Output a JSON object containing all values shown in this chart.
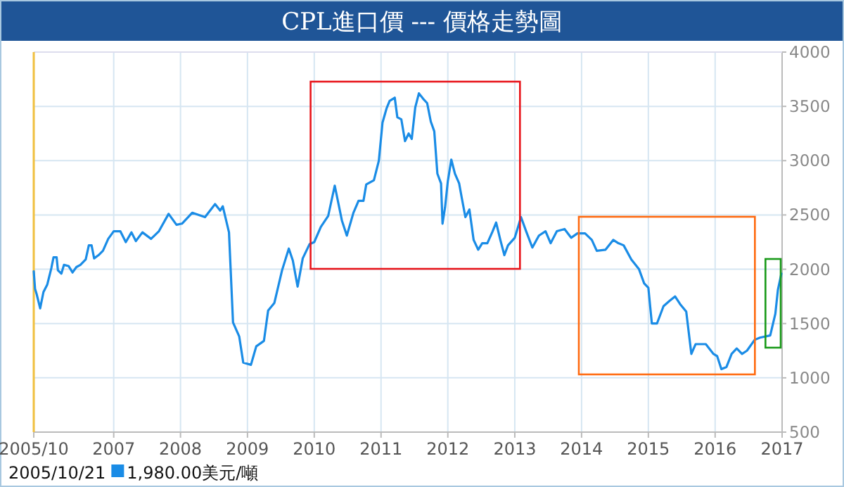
{
  "chart_data": {
    "type": "line",
    "title": "CPL進口價 --- 價格走勢圖",
    "xlim": [
      "2005-10-21",
      "2017-01-01"
    ],
    "xticks": [
      {
        "value": "2005-10-21",
        "label": "2005/10"
      },
      {
        "value": "2007",
        "label": "2007"
      },
      {
        "value": "2008",
        "label": "2008"
      },
      {
        "value": "2009",
        "label": "2009"
      },
      {
        "value": "2010",
        "label": "2010"
      },
      {
        "value": "2011",
        "label": "2011"
      },
      {
        "value": "2012",
        "label": "2012"
      },
      {
        "value": "2013",
        "label": "2013"
      },
      {
        "value": "2014",
        "label": "2014"
      },
      {
        "value": "2015",
        "label": "2015"
      },
      {
        "value": "2016",
        "label": "2016"
      },
      {
        "value": "2017",
        "label": "2017"
      }
    ],
    "ylim": [
      500,
      4000
    ],
    "yticks": [
      500,
      1000,
      1500,
      2000,
      2500,
      3000,
      3500,
      4000
    ],
    "grid": true,
    "series": [
      {
        "color": "#1a8ce6",
        "x": [
          "2005-10-21",
          "2005-10-28",
          "2005-11-06",
          "2005-11-25",
          "2005-12-13",
          "2006-01-03",
          "2006-01-25",
          "2006-02-06",
          "2006-02-23",
          "2006-03-02",
          "2006-03-21",
          "2006-04-04",
          "2006-04-29",
          "2006-05-21",
          "2006-06-11",
          "2006-07-03",
          "2006-08-01",
          "2006-08-18",
          "2006-09-02",
          "2006-09-16",
          "2006-10-10",
          "2006-11-03",
          "2006-12-02",
          "2007-01-01",
          "2007-02-06",
          "2007-03-08",
          "2007-04-08",
          "2007-05-02",
          "2007-06-07",
          "2007-07-24",
          "2007-09-05",
          "2007-10-28",
          "2007-12-10",
          "2008-01-09",
          "2008-03-05",
          "2008-05-14",
          "2008-07-08",
          "2008-08-05",
          "2008-08-19",
          "2008-09-22",
          "2008-10-14",
          "2008-11-17",
          "2008-12-09",
          "2009-01-20",
          "2009-02-18",
          "2009-04-01",
          "2009-04-24",
          "2009-05-28",
          "2009-07-09",
          "2009-08-15",
          "2009-09-06",
          "2009-10-02",
          "2009-10-30",
          "2009-12-06",
          "2010-01-01",
          "2010-02-06",
          "2010-03-18",
          "2010-04-23",
          "2010-06-01",
          "2010-06-28",
          "2010-08-03",
          "2010-08-31",
          "2010-09-27",
          "2010-10-12",
          "2010-11-23",
          "2010-12-20",
          "2011-01-09",
          "2011-01-31",
          "2011-02-17",
          "2011-03-17",
          "2011-03-31",
          "2011-04-22",
          "2011-05-12",
          "2011-06-01",
          "2011-06-18",
          "2011-07-07",
          "2011-07-27",
          "2011-08-19",
          "2011-09-10",
          "2011-09-30",
          "2011-10-19",
          "2011-11-05",
          "2011-11-25",
          "2011-12-03",
          "2011-12-17",
          "2012-01-01",
          "2012-01-20",
          "2012-02-09",
          "2012-03-03",
          "2012-03-17",
          "2012-04-06",
          "2012-04-28",
          "2012-05-21",
          "2012-06-15",
          "2012-07-07",
          "2012-08-04",
          "2012-09-02",
          "2012-09-21",
          "2012-10-14",
          "2012-11-05",
          "2012-11-25",
          "2013-01-01",
          "2013-02-04",
          "2013-03-04",
          "2013-04-07",
          "2013-05-13",
          "2013-06-18",
          "2013-07-16",
          "2013-08-19",
          "2013-09-30",
          "2013-11-05",
          "2013-12-09",
          "2014-01-20",
          "2014-02-26",
          "2014-03-25",
          "2014-05-12",
          "2014-06-23",
          "2014-07-21",
          "2014-08-19",
          "2014-09-30",
          "2014-11-11",
          "2014-12-09",
          "2015-01-01",
          "2015-01-20",
          "2015-02-17",
          "2015-03-25",
          "2015-04-28",
          "2015-05-27",
          "2015-06-23",
          "2015-07-27",
          "2015-08-24",
          "2015-09-16",
          "2015-11-11",
          "2015-12-23",
          "2016-01-12",
          "2016-02-04",
          "2016-03-03",
          "2016-03-31",
          "2016-04-28",
          "2016-05-27",
          "2016-06-23",
          "2016-08-04",
          "2016-09-02",
          "2016-10-28",
          "2016-11-25",
          "2016-12-09",
          "2016-12-28"
        ],
        "values": [
          1980,
          1820,
          1770,
          1640,
          1790,
          1860,
          2010,
          2110,
          2110,
          1990,
          1960,
          2040,
          2030,
          1970,
          2020,
          2040,
          2090,
          2220,
          2220,
          2100,
          2130,
          2170,
          2280,
          2350,
          2350,
          2250,
          2340,
          2260,
          2340,
          2280,
          2350,
          2510,
          2410,
          2420,
          2520,
          2480,
          2600,
          2540,
          2580,
          2340,
          1510,
          1380,
          1140,
          1120,
          1290,
          1340,
          1620,
          1690,
          1990,
          2190,
          2080,
          1840,
          2100,
          2230,
          2250,
          2390,
          2490,
          2770,
          2450,
          2310,
          2520,
          2630,
          2630,
          2780,
          2820,
          3000,
          3350,
          3480,
          3550,
          3580,
          3400,
          3380,
          3180,
          3250,
          3200,
          3490,
          3620,
          3570,
          3530,
          3360,
          3270,
          2880,
          2790,
          2420,
          2570,
          2810,
          3010,
          2880,
          2790,
          2660,
          2480,
          2550,
          2270,
          2180,
          2240,
          2240,
          2350,
          2430,
          2270,
          2130,
          2220,
          2290,
          2480,
          2350,
          2200,
          2310,
          2350,
          2240,
          2350,
          2370,
          2290,
          2330,
          2330,
          2270,
          2170,
          2180,
          2270,
          2240,
          2220,
          2090,
          2000,
          1870,
          1830,
          1500,
          1500,
          1660,
          1710,
          1750,
          1680,
          1610,
          1220,
          1310,
          1310,
          1220,
          1200,
          1080,
          1100,
          1220,
          1270,
          1220,
          1250,
          1350,
          1370,
          1390,
          1590,
          1810,
          1960
        ]
      }
    ],
    "annotations": [
      "2005/10/21",
      "1,980.00美元/噸"
    ]
  }
}
